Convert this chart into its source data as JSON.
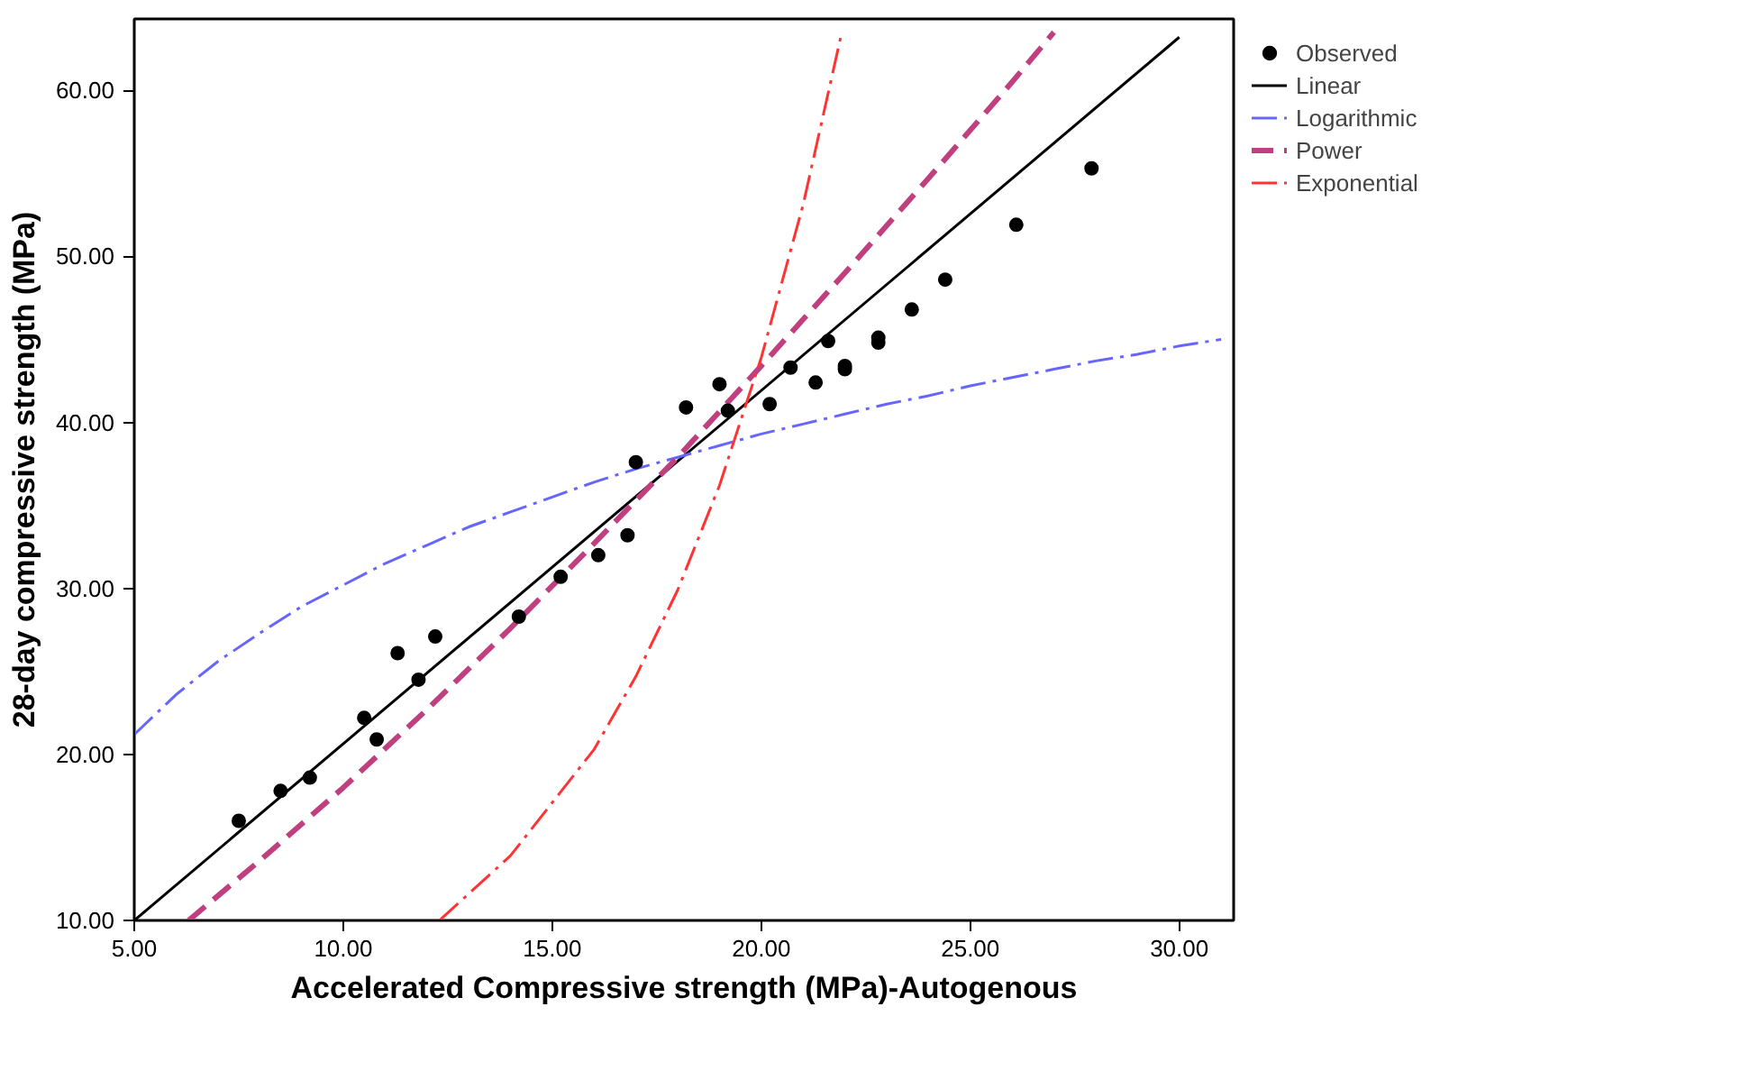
{
  "chart_data": {
    "type": "scatter",
    "xlabel": "Accelerated Compressive strength (MPa)-Autogenous",
    "ylabel": "28-day compressive strength (MPa)",
    "xlim": [
      5,
      31.3
    ],
    "ylim": [
      10,
      64.3
    ],
    "xticks": [
      {
        "value": 5,
        "label": "5.00"
      },
      {
        "value": 10,
        "label": "10.00"
      },
      {
        "value": 15,
        "label": "15.00"
      },
      {
        "value": 20,
        "label": "20.00"
      },
      {
        "value": 25,
        "label": "25.00"
      },
      {
        "value": 30,
        "label": "30.00"
      }
    ],
    "yticks": [
      {
        "value": 10,
        "label": "10.00"
      },
      {
        "value": 20,
        "label": "20.00"
      },
      {
        "value": 30,
        "label": "30.00"
      },
      {
        "value": 40,
        "label": "40.00"
      },
      {
        "value": 50,
        "label": "50.00"
      },
      {
        "value": 60,
        "label": "60.00"
      }
    ],
    "grid": false,
    "legend": "top right",
    "series": [
      {
        "name": "Observed",
        "marker": "circle",
        "color": "#000000",
        "x": [
          7.5,
          8.5,
          9.2,
          10.5,
          10.8,
          11.3,
          11.8,
          12.2,
          14.2,
          15.2,
          16.1,
          16.8,
          17.0,
          18.2,
          19.0,
          19.2,
          20.2,
          20.7,
          21.3,
          21.6,
          22.0,
          22.0,
          22.8,
          22.8,
          23.6,
          24.4,
          26.1,
          27.9
        ],
        "values": [
          16.0,
          17.8,
          18.6,
          22.2,
          20.9,
          26.1,
          24.5,
          27.1,
          28.3,
          30.7,
          32.0,
          33.2,
          37.6,
          40.9,
          42.3,
          40.7,
          41.1,
          43.3,
          42.4,
          44.9,
          43.4,
          43.2,
          45.1,
          44.8,
          46.8,
          48.6,
          51.9,
          55.3
        ]
      },
      {
        "name": "Linear",
        "type": "line",
        "line_style": "solid",
        "color": "#000000",
        "x": [
          5,
          30
        ],
        "values": [
          10,
          63.2
        ]
      },
      {
        "name": "Logarithmic",
        "type": "line",
        "line_style": "dashdot",
        "color": "#6666ff",
        "x": [
          5,
          6,
          7,
          8,
          9,
          10,
          11,
          12,
          13,
          14,
          15,
          16,
          17,
          18,
          19,
          20,
          21,
          22,
          23,
          24,
          25,
          26,
          27,
          28,
          29,
          30,
          31
        ],
        "values": [
          21.2,
          23.6,
          25.6,
          27.3,
          28.9,
          30.2,
          31.5,
          32.6,
          33.7,
          34.6,
          35.5,
          36.4,
          37.2,
          37.9,
          38.6,
          39.3,
          39.9,
          40.5,
          41.1,
          41.6,
          42.2,
          42.7,
          43.2,
          43.7,
          44.1,
          44.6,
          45.0
        ]
      },
      {
        "name": "Power",
        "type": "line",
        "line_style": "dashed",
        "color": "#c0407f",
        "x": [
          6.3,
          8,
          10,
          12,
          14,
          16,
          18,
          20,
          22,
          24,
          26,
          27
        ],
        "values": [
          10.0,
          13.6,
          18.0,
          22.7,
          27.6,
          32.7,
          37.9,
          43.4,
          49.0,
          54.7,
          60.5,
          63.5
        ]
      },
      {
        "name": "Exponential",
        "type": "line",
        "line_style": "dashdot",
        "color": "#ff3333",
        "x": [
          12.3,
          14,
          16,
          17,
          18,
          19,
          20,
          21,
          21.9
        ],
        "values": [
          10.0,
          13.9,
          20.3,
          24.7,
          29.9,
          36.2,
          43.9,
          53.1,
          63.2
        ]
      }
    ]
  }
}
